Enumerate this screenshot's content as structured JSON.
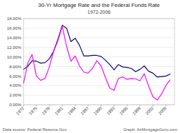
{
  "chart_data": {
    "type": "line",
    "title": "30-Yr Mortgage Rate and the Federal Funds Rate",
    "subtitle": "1972-2006",
    "annotations": [
      "Data source: Federal Reserve.Gov",
      "Graph: AzMortgageGuru.com"
    ],
    "x": [
      1972,
      1973,
      1974,
      1975,
      1976,
      1977,
      1978,
      1979,
      1980,
      1981,
      1982,
      1983,
      1984,
      1985,
      1986,
      1987,
      1988,
      1989,
      1990,
      1991,
      1992,
      1993,
      1994,
      1995,
      1996,
      1997,
      1998,
      1999,
      2000,
      2001,
      2002,
      2003,
      2004,
      2005,
      2006
    ],
    "series": [
      {
        "color": "#000080",
        "values": [
          7.4,
          8.0,
          9.2,
          9.1,
          8.7,
          8.8,
          9.6,
          11.2,
          13.7,
          16.6,
          16.0,
          13.2,
          13.9,
          12.4,
          10.2,
          10.2,
          10.3,
          10.3,
          10.1,
          9.3,
          8.4,
          7.3,
          8.4,
          7.9,
          7.8,
          7.6,
          6.9,
          7.4,
          8.1,
          7.0,
          6.6,
          5.8,
          5.9,
          6.0,
          6.4
        ]
      },
      {
        "color": "#ff00ff",
        "values": [
          4.4,
          8.7,
          10.5,
          6.0,
          5.1,
          5.5,
          7.9,
          11.2,
          13.4,
          16.4,
          12.2,
          9.1,
          10.2,
          8.1,
          6.8,
          6.6,
          7.6,
          9.2,
          8.1,
          5.7,
          3.5,
          3.0,
          5.5,
          5.8,
          5.3,
          5.5,
          5.4,
          5.0,
          6.5,
          3.9,
          1.7,
          1.0,
          2.2,
          4.0,
          5.2
        ]
      }
    ],
    "xlim": [
      1972,
      2007
    ],
    "xticks": [
      1972,
      1975,
      1978,
      1981,
      1984,
      1987,
      1990,
      1993,
      1996,
      1999,
      2002,
      2005
    ],
    "ylim": [
      0,
      18
    ],
    "yticks": [
      {
        "value": 0,
        "label": "0.00%"
      },
      {
        "value": 2,
        "label": "2.00%"
      },
      {
        "value": 4,
        "label": "4.00%"
      },
      {
        "value": 6,
        "label": "6.00%"
      },
      {
        "value": 8,
        "label": "8.00%"
      },
      {
        "value": 10,
        "label": "10.00%"
      },
      {
        "value": 12,
        "label": "12.00%"
      },
      {
        "value": 14,
        "label": "14.00%"
      },
      {
        "value": 16,
        "label": "16.00%"
      },
      {
        "value": 18,
        "label": "18.00%"
      }
    ],
    "grid": true
  }
}
